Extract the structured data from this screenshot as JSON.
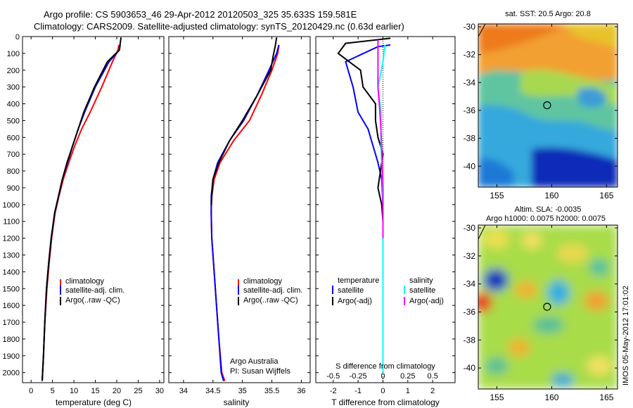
{
  "title_line1": "Argo profile: CS 5903653_46 29-Apr-2012 20120503_325 35.633S 159.581E",
  "title_line2": "Climatology: CARS2009. Satellite-adjusted climatology: synTS_20120429.nc (0.63d earlier)",
  "sst_title": "sat. SST: 20.5  Argo: 20.8",
  "sla_title1": "Altim. SLA: -0.0035",
  "sla_title2": "Argo h1000: 0.0075  h2000: 0.0075",
  "credit": "IMOS 05-May-2012 17:01:02",
  "credit_attribution": "Argo Australia",
  "credit_pi": "PI: Susan Wijffels",
  "diff_label_s": "S difference from climatology",
  "chart_data": [
    {
      "type": "line",
      "id": "temperature",
      "xlabel": "temperature (deg C)",
      "ylabel": "",
      "xlim": [
        -2,
        31
      ],
      "ylim": [
        2060,
        0
      ],
      "xticks": [
        0,
        5,
        10,
        15,
        20,
        25,
        30
      ],
      "yticks": [
        0,
        100,
        200,
        300,
        400,
        500,
        600,
        700,
        800,
        900,
        1000,
        1100,
        1200,
        1300,
        1400,
        1500,
        1600,
        1700,
        1800,
        1900,
        2000
      ],
      "legend": [
        "climatology",
        "satellite-adj. clim.",
        "Argo(..raw -QC)"
      ],
      "series": [
        {
          "name": "climatology",
          "color": "#ff0000",
          "x": [
            20.5,
            20.3,
            19.0,
            16.5,
            13.8,
            11.8,
            10.2,
            8.8,
            7.5,
            6.5,
            5.6,
            4.8,
            4.2,
            3.7,
            3.2,
            2.9,
            2.6
          ],
          "y": [
            50,
            80,
            150,
            300,
            450,
            550,
            650,
            750,
            850,
            950,
            1050,
            1200,
            1350,
            1500,
            1700,
            1900,
            2050
          ]
        },
        {
          "name": "satellite-adj. clim.",
          "color": "#0000ff",
          "x": [
            20.8,
            20.6,
            18.2,
            15.0,
            12.5,
            11.0,
            9.7,
            8.5,
            7.3,
            6.4,
            5.5,
            4.7,
            4.1,
            3.6,
            3.2,
            2.9,
            2.6
          ],
          "y": [
            50,
            80,
            150,
            300,
            450,
            550,
            650,
            750,
            850,
            950,
            1050,
            1200,
            1350,
            1500,
            1700,
            1900,
            2050
          ]
        },
        {
          "name": "Argo(..raw -QC)",
          "color": "#000000",
          "x": [
            21.0,
            20.8,
            20.6,
            17.8,
            14.8,
            12.3,
            11.0,
            9.7,
            8.4,
            7.3,
            6.4,
            5.5,
            4.7,
            4.1,
            3.6,
            3.2,
            2.9,
            2.6
          ],
          "y": [
            5,
            40,
            80,
            150,
            300,
            450,
            550,
            650,
            750,
            850,
            950,
            1050,
            1200,
            1350,
            1500,
            1700,
            1900,
            2050
          ]
        }
      ]
    },
    {
      "type": "line",
      "id": "salinity",
      "xlabel": "salinity",
      "ylabel": "",
      "xlim": [
        33.75,
        36.15
      ],
      "ylim": [
        2060,
        0
      ],
      "xticks": [
        34,
        34.5,
        35,
        35.5,
        36
      ],
      "legend": [
        "climatology",
        "satellite-adj. clim.",
        "Argo(..raw -QC)"
      ],
      "series": [
        {
          "name": "climatology",
          "color": "#ff0000",
          "x": [
            35.62,
            35.6,
            35.5,
            35.32,
            35.12,
            34.85,
            34.62,
            34.52,
            34.48,
            34.47,
            34.48,
            34.52,
            34.56,
            34.6,
            34.65,
            34.7
          ],
          "y": [
            50,
            100,
            200,
            350,
            500,
            620,
            750,
            850,
            950,
            1050,
            1200,
            1400,
            1600,
            1800,
            2000,
            2050
          ]
        },
        {
          "name": "satellite-adj. clim.",
          "color": "#0000ff",
          "x": [
            35.62,
            35.58,
            35.45,
            35.25,
            35.02,
            34.78,
            34.58,
            34.5,
            34.47,
            34.47,
            34.48,
            34.52,
            34.56,
            34.6,
            34.64,
            34.68
          ],
          "y": [
            50,
            100,
            200,
            350,
            500,
            620,
            750,
            850,
            950,
            1050,
            1200,
            1400,
            1600,
            1800,
            2000,
            2050
          ]
        },
        {
          "name": "Argo(..raw -QC)",
          "color": "#000000",
          "x": [
            35.58,
            35.56,
            35.52,
            35.48,
            35.25,
            35.0,
            34.78,
            34.6,
            34.5,
            34.48,
            34.47
          ],
          "y": [
            5,
            50,
            120,
            200,
            350,
            500,
            620,
            750,
            850,
            950,
            1000
          ]
        }
      ]
    },
    {
      "type": "line",
      "id": "difference",
      "xlabel": "T difference from climatology",
      "ylabel": "",
      "xlim": [
        -2.7,
        2.9
      ],
      "ylim": [
        2060,
        0
      ],
      "xticks": [
        -2,
        -1,
        0,
        1,
        2
      ],
      "x2label": "S difference from climatology",
      "x2ticks": [
        -0.5,
        -0.25,
        0,
        0.25,
        0.5
      ],
      "legend_temperature": [
        "temperature",
        "satellite",
        "Argo(-adj)"
      ],
      "legend_salinity": [
        "salinity",
        "satellite",
        "Argo(-adj)"
      ],
      "series": [
        {
          "name": "T satellite",
          "color": "#0000ff",
          "x": [
            0.3,
            -0.2,
            -1.5,
            -1.2,
            -1.0,
            -0.6,
            -0.4,
            -0.2,
            -0.05,
            0,
            0,
            0,
            0,
            0
          ],
          "y": [
            50,
            60,
            150,
            300,
            450,
            550,
            650,
            750,
            850,
            1000,
            1200,
            1500,
            1800,
            2000
          ]
        },
        {
          "name": "T Argo(-adj)",
          "color": "#000000",
          "x": [
            0.3,
            -1.5,
            -1.8,
            -0.9,
            -0.8,
            -0.3,
            -0.3,
            -0.2,
            0,
            -0.2,
            -0.05,
            0,
            0,
            0,
            0,
            0
          ],
          "y": [
            10,
            40,
            100,
            200,
            300,
            400,
            500,
            600,
            700,
            900,
            1000,
            1100,
            1300,
            1600,
            1800,
            2000
          ]
        },
        {
          "name": "S satellite",
          "color": "#00ffff",
          "x": [
            0.02,
            0,
            -0.05,
            -0.02,
            -0.02,
            -0.02,
            -0.01,
            0,
            0,
            0,
            0,
            0
          ],
          "y": [
            50,
            150,
            300,
            450,
            550,
            650,
            750,
            1000,
            1200,
            1500,
            1800,
            2000
          ]
        },
        {
          "name": "S Argo(-adj)",
          "color": "#ff00ff",
          "x": [
            -0.05,
            -0.05,
            -0.05,
            -0.03,
            -0.02,
            -0.01,
            0,
            0,
            0
          ],
          "y": [
            20,
            100,
            300,
            450,
            550,
            700,
            900,
            1000,
            1200
          ]
        }
      ]
    },
    {
      "type": "heatmap",
      "id": "sst_map",
      "xticks": [
        155,
        160,
        165
      ],
      "yticks": [
        -30,
        -32,
        -34,
        -36,
        -38,
        -40
      ],
      "xlim": [
        153.3,
        166
      ],
      "ylim": [
        -41.5,
        -29.8
      ],
      "marker": {
        "lon": 159.58,
        "lat": -35.63
      }
    },
    {
      "type": "heatmap",
      "id": "sla_map",
      "xticks": [
        155,
        160,
        165
      ],
      "yticks": [
        -30,
        -32,
        -34,
        -36,
        -38,
        -40
      ],
      "xlim": [
        153.3,
        166
      ],
      "ylim": [
        -41.5,
        -29.8
      ],
      "marker": {
        "lon": 159.58,
        "lat": -35.63
      }
    }
  ]
}
